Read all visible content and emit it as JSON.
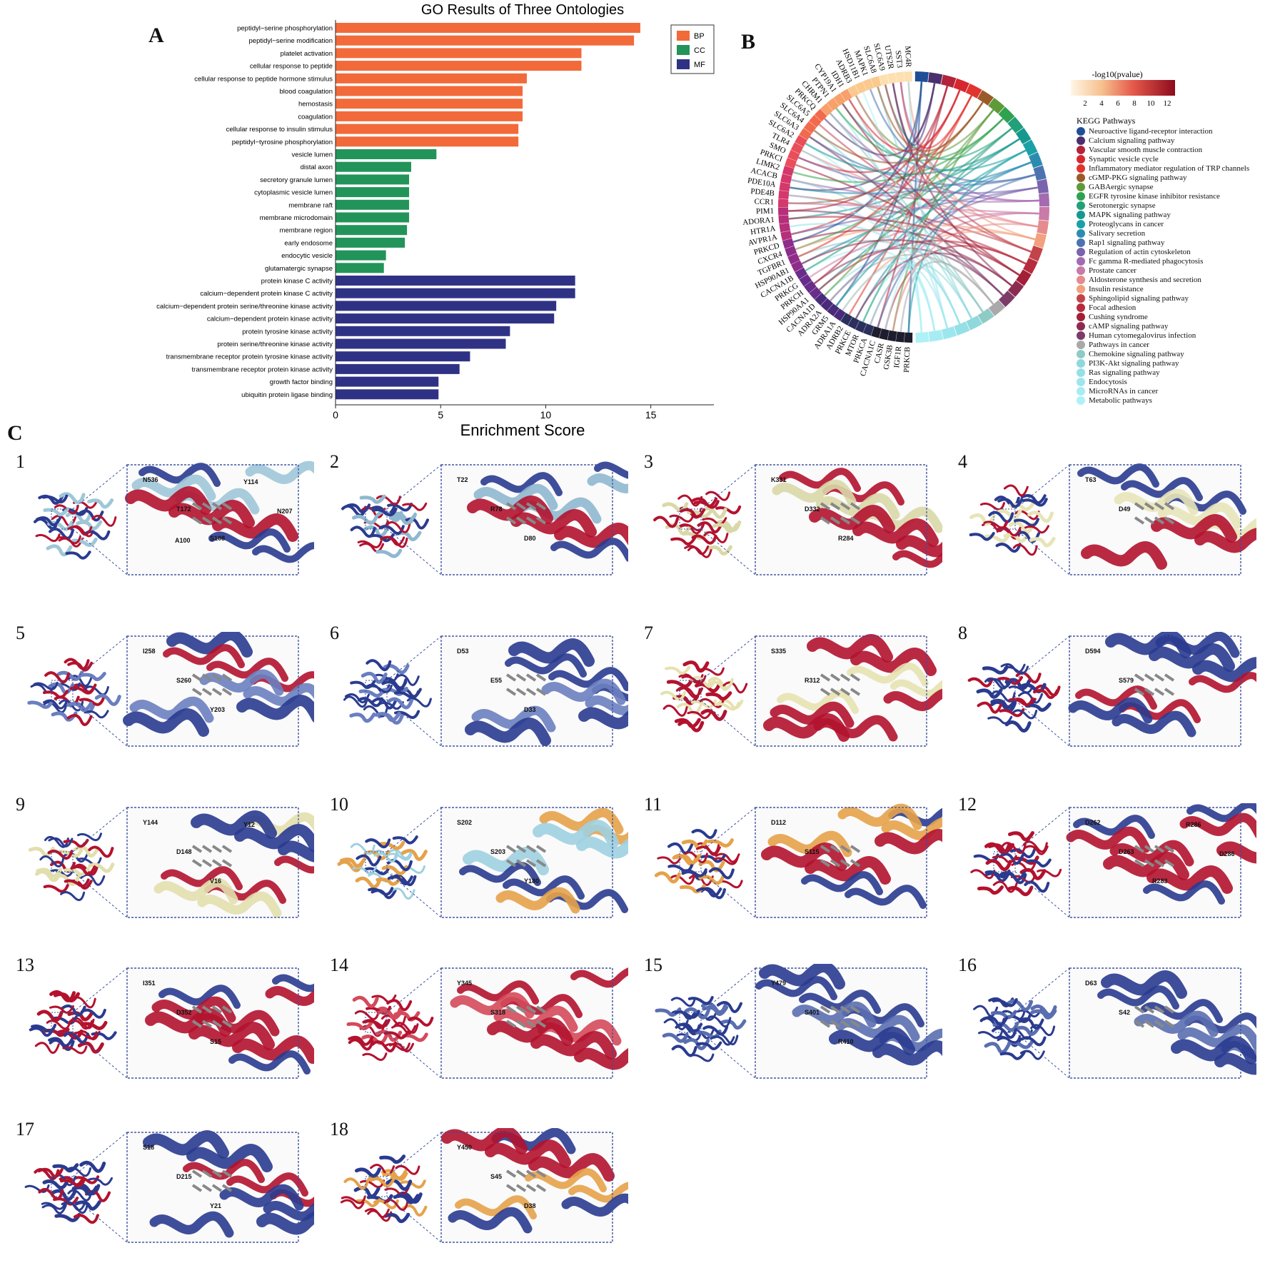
{
  "panels": {
    "a": "A",
    "b": "B",
    "c": "C"
  },
  "chart_data": {
    "type": "bar",
    "orientation": "horizontal",
    "title": "GO Results of Three Ontologies",
    "xlabel": "Enrichment Score",
    "ylabel": "",
    "xlim": [
      0,
      18
    ],
    "xticks": [
      0,
      5,
      10,
      15
    ],
    "legend": {
      "placement": "top-right",
      "entries": [
        {
          "name": "BP",
          "color": "#f26a3a"
        },
        {
          "name": "CC",
          "color": "#22945a"
        },
        {
          "name": "MF",
          "color": "#2f3284"
        }
      ]
    },
    "series": [
      {
        "name": "BP",
        "color": "#f26a3a",
        "categories": [
          "peptidyl−serine phosphorylation",
          "peptidyl−serine modification",
          "platelet activation",
          "cellular response to peptide",
          "cellular response to peptide hormone stimulus",
          "blood coagulation",
          "hemostasis",
          "coagulation",
          "cellular response to insulin stimulus",
          "peptidyl−tyrosine phosphorylation"
        ],
        "values": [
          14.5,
          14.2,
          11.7,
          11.7,
          9.1,
          8.9,
          8.9,
          8.9,
          8.7,
          8.7
        ]
      },
      {
        "name": "CC",
        "color": "#22945a",
        "categories": [
          "vesicle lumen",
          "distal axon",
          "secretory granule lumen",
          "cytoplasmic vesicle lumen",
          "membrane raft",
          "membrane microdomain",
          "membrane region",
          "early endosome",
          "endocytic vesicle",
          "glutamatergic synapse"
        ],
        "values": [
          4.8,
          3.6,
          3.5,
          3.5,
          3.5,
          3.5,
          3.4,
          3.3,
          2.4,
          2.3
        ]
      },
      {
        "name": "MF",
        "color": "#2f3284",
        "categories": [
          "protein kinase C activity",
          "calcium−dependent protein kinase C activity",
          "calcium−dependent protein serine/threonine kinase activity",
          "calcium−dependent protein kinase activity",
          "protein tyrosine kinase activity",
          "protein serine/threonine kinase activity",
          "transmembrane receptor protein tyrosine kinase activity",
          "transmembrane receptor protein kinase activity",
          "growth factor binding",
          "ubiquitin protein ligase binding"
        ],
        "values": [
          11.4,
          11.4,
          10.5,
          10.4,
          8.3,
          8.1,
          6.4,
          5.9,
          4.9,
          4.9
        ]
      }
    ]
  },
  "chord": {
    "colorbar_title": "-log10(pvalue)",
    "colorbar_ticks": [
      "2",
      "4",
      "6",
      "8",
      "10",
      "12"
    ],
    "legend_title": "KEGG Pathways",
    "pathways": [
      {
        "name": "Neuroactive ligand-receptor interaction",
        "color": "#1f4e96"
      },
      {
        "name": "Calcium signaling pathway",
        "color": "#4a2f6e"
      },
      {
        "name": "Vascular smooth muscle contraction",
        "color": "#b3233b"
      },
      {
        "name": "Synaptic vesicle cycle",
        "color": "#d7262f"
      },
      {
        "name": "Inflammatory mediator regulation of TRP channels",
        "color": "#e0352e"
      },
      {
        "name": "cGMP-PKG signaling pathway",
        "color": "#9a5b2a"
      },
      {
        "name": "GABAergic synapse",
        "color": "#5e9a3a"
      },
      {
        "name": "EGFR tyrosine kinase inhibitor resistance",
        "color": "#2fa24f"
      },
      {
        "name": "Serotonergic synapse",
        "color": "#22a07a"
      },
      {
        "name": "MAPK signaling pathway",
        "color": "#16988f"
      },
      {
        "name": "Proteoglycans in cancer",
        "color": "#1aa0a6"
      },
      {
        "name": "Salivary secretion",
        "color": "#2b8cb0"
      },
      {
        "name": "Rap1 signaling pathway",
        "color": "#4c73b0"
      },
      {
        "name": "Regulation of actin cytoskeleton",
        "color": "#7a64ad"
      },
      {
        "name": "Fc gamma R-mediated phagocytosis",
        "color": "#a46bb0"
      },
      {
        "name": "Prostate cancer",
        "color": "#c97aa8"
      },
      {
        "name": "Aldosterone synthesis and secretion",
        "color": "#e58b8e"
      },
      {
        "name": "Insulin resistance",
        "color": "#f2a07d"
      },
      {
        "name": "Sphingolipid signaling pathway",
        "color": "#c2434a"
      },
      {
        "name": "Focal adhesion",
        "color": "#b82a3d"
      },
      {
        "name": "Cushing syndrome",
        "color": "#a31f36"
      },
      {
        "name": "cAMP signaling pathway",
        "color": "#8c2b50"
      },
      {
        "name": "Human cytomegalovirus infection",
        "color": "#7d3b68"
      },
      {
        "name": "Pathways in cancer",
        "color": "#a9a9a9"
      },
      {
        "name": "Chemokine signaling pathway",
        "color": "#8ecbc5"
      },
      {
        "name": "PI3K-Akt signaling pathway",
        "color": "#8fd8dc"
      },
      {
        "name": "Ras signaling pathway",
        "color": "#95e0e6"
      },
      {
        "name": "Endocytosis",
        "color": "#9ee6ee"
      },
      {
        "name": "MicroRNAs in cancer",
        "color": "#a6ecf2"
      },
      {
        "name": "Metabolic pathways",
        "color": "#aef1f6"
      }
    ],
    "genes": [
      "PRKCB",
      "IGF1R",
      "GSK3B",
      "CASR",
      "CACNA1C",
      "PRKCA",
      "MTOR",
      "PRKCE",
      "ADRB2",
      "ADRA1A",
      "GRM5",
      "ADRA2A",
      "CACNA1D",
      "HSP90AA1",
      "PRKCH",
      "PRKCG",
      "CACNA1B",
      "HSP90AB1",
      "TGFBR1",
      "CXCR4",
      "PRKCD",
      "AVPR1A",
      "HTR1A",
      "ADORA1",
      "PIM1",
      "CCR1",
      "PDE4B",
      "PDE10A",
      "ACACB",
      "LIMK2",
      "PRKCI",
      "SMO",
      "TLR4",
      "SLC6A2",
      "SLC6A3",
      "SLC6A4",
      "SLC6A5",
      "PRKCQ",
      "CHRM1",
      "PTPN1",
      "CYP19A1",
      "IDH1",
      "ADRB3",
      "HSD11B1",
      "MAPK1",
      "SLC6A8",
      "SLC6A9",
      "UTS2R",
      "SST3",
      "MC4R"
    ]
  },
  "docking": {
    "labels": [
      "1",
      "2",
      "3",
      "4",
      "5",
      "6",
      "7",
      "8",
      "9",
      "10",
      "11",
      "12",
      "13",
      "14",
      "15",
      "16",
      "17",
      "18"
    ],
    "zoom_residues": [
      [
        "N536",
        "T172",
        "S108",
        "Y114",
        "N207",
        "A100"
      ],
      [
        "T22",
        "R78",
        "D80"
      ],
      [
        "K331",
        "D332",
        "R284"
      ],
      [
        "T63",
        "D49"
      ],
      [
        "I258",
        "S260",
        "Y203"
      ],
      [
        "D53",
        "E55",
        "D33"
      ],
      [
        "S335",
        "R312"
      ],
      [
        "D594",
        "S579"
      ],
      [
        "Y144",
        "D148",
        "V16",
        "Y12"
      ],
      [
        "S202",
        "S203",
        "Y180"
      ],
      [
        "D112",
        "S115"
      ],
      [
        "D262",
        "D263",
        "R283",
        "R286",
        "D286"
      ],
      [
        "I351",
        "D352",
        "S15"
      ],
      [
        "Y345",
        "S318"
      ],
      [
        "Y479",
        "S401",
        "R410"
      ],
      [
        "D63",
        "S42"
      ],
      [
        "S18",
        "D215",
        "Y21"
      ],
      [
        "Y450",
        "S45",
        "D38"
      ]
    ]
  }
}
